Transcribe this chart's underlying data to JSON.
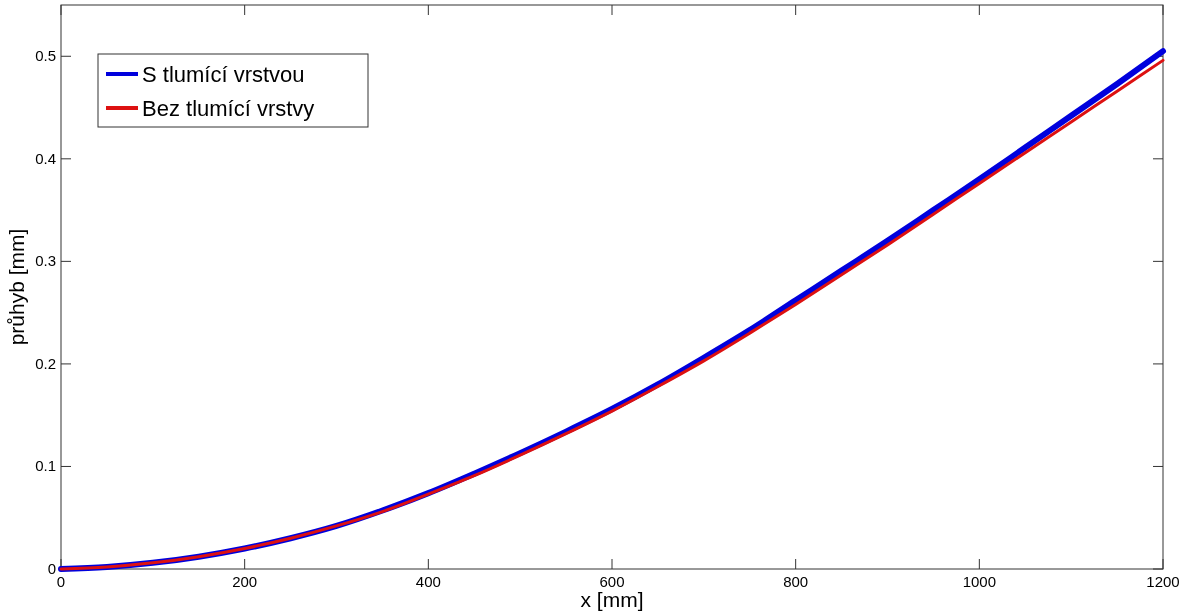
{
  "chart_data": {
    "type": "line",
    "xlabel": "x [mm]",
    "ylabel": "průhyb [mm]",
    "x": [
      0,
      50,
      100,
      150,
      200,
      250,
      300,
      350,
      400,
      450,
      500,
      550,
      600,
      650,
      700,
      750,
      800,
      850,
      900,
      950,
      1000,
      1050,
      1100,
      1150,
      1200
    ],
    "series": [
      {
        "name": "S tlumící vrstvou",
        "color": "#0000dd",
        "values": [
          0,
          0.002,
          0.006,
          0.012,
          0.02,
          0.03,
          0.042,
          0.057,
          0.074,
          0.093,
          0.113,
          0.134,
          0.156,
          0.18,
          0.206,
          0.233,
          0.262,
          0.291,
          0.32,
          0.35,
          0.38,
          0.411,
          0.442,
          0.473,
          0.505
        ]
      },
      {
        "name": "Bez tlumící vrstvy",
        "color": "#dd1111",
        "values": [
          0,
          0.002,
          0.006,
          0.012,
          0.02,
          0.03,
          0.042,
          0.056,
          0.073,
          0.091,
          0.111,
          0.132,
          0.154,
          0.178,
          0.203,
          0.23,
          0.258,
          0.287,
          0.316,
          0.346,
          0.376,
          0.406,
          0.436,
          0.466,
          0.496
        ]
      }
    ],
    "xlim": [
      0,
      1200
    ],
    "xticks": [
      0,
      200,
      400,
      600,
      800,
      1000,
      1200
    ],
    "ylim": [
      0,
      0.55
    ],
    "yticks": [
      0,
      0.1,
      0.2,
      0.3,
      0.4,
      0.5
    ],
    "legend": "top left",
    "grid": false,
    "line_style": "solid",
    "marker": "none"
  }
}
